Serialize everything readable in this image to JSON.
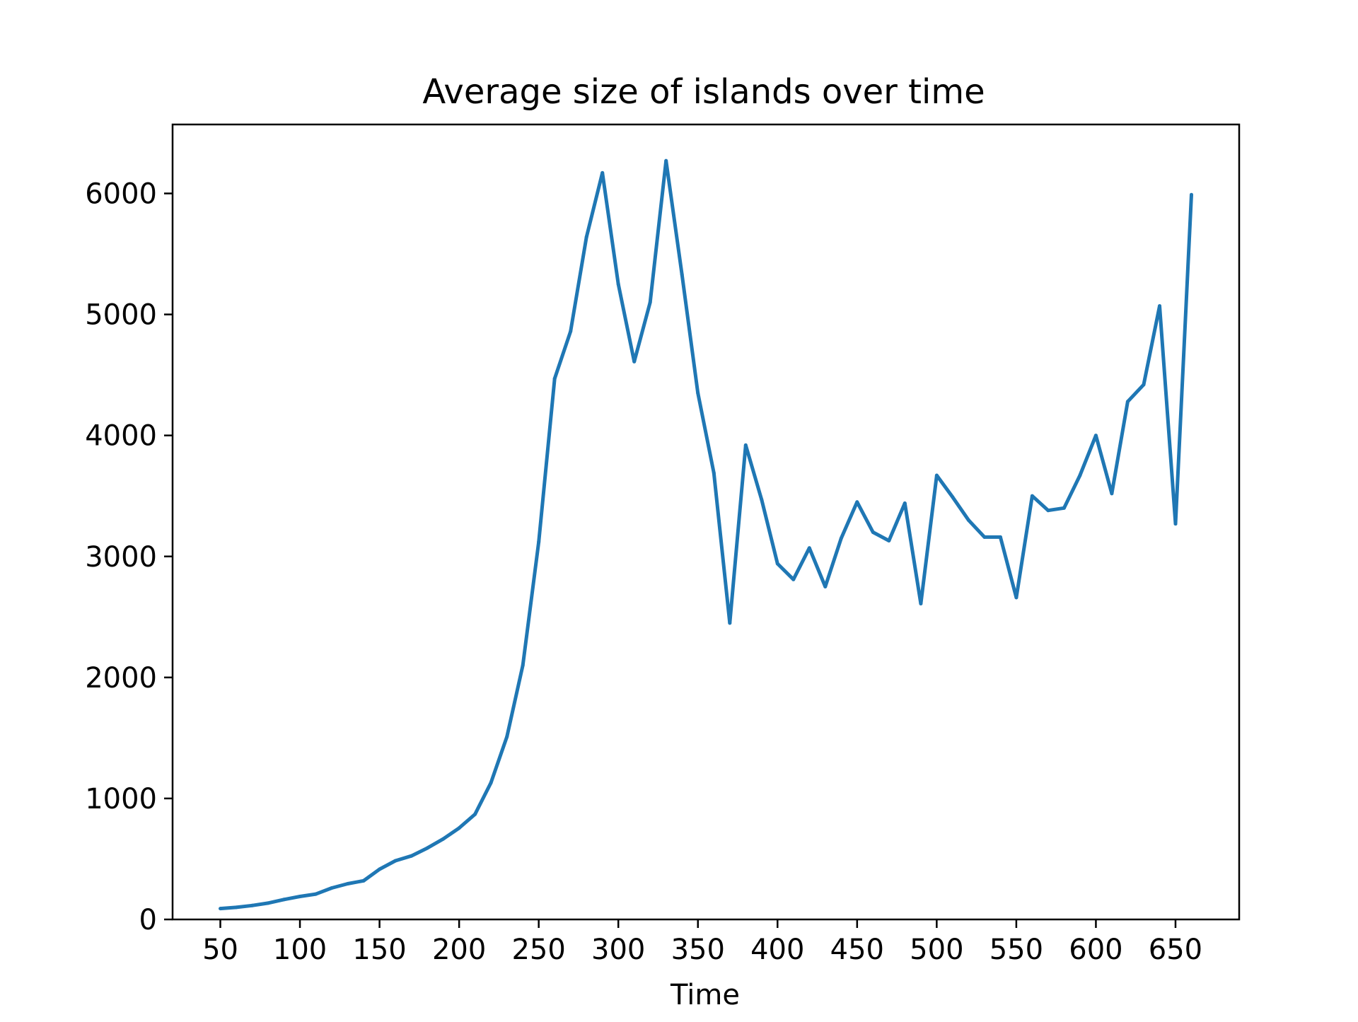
{
  "chart_data": {
    "type": "line",
    "title": "Average size of islands over time",
    "xlabel": "Time",
    "ylabel": "",
    "xlim": [
      20,
      690
    ],
    "ylim": [
      0,
      6570
    ],
    "xticks": [
      50,
      100,
      150,
      200,
      250,
      300,
      350,
      400,
      450,
      500,
      550,
      600,
      650
    ],
    "yticks": [
      0,
      1000,
      2000,
      3000,
      4000,
      5000,
      6000
    ],
    "grid": false,
    "legend": "none",
    "series": [
      {
        "color": "#1f77b4",
        "x": [
          50,
          60,
          70,
          80,
          90,
          100,
          110,
          120,
          130,
          140,
          150,
          160,
          170,
          180,
          190,
          200,
          210,
          220,
          230,
          240,
          250,
          260,
          270,
          280,
          290,
          300,
          310,
          320,
          330,
          340,
          350,
          360,
          370,
          380,
          390,
          400,
          410,
          420,
          430,
          440,
          450,
          460,
          470,
          480,
          490,
          500,
          510,
          520,
          530,
          540,
          550,
          560,
          570,
          580,
          590,
          600,
          610,
          620,
          630,
          640,
          650,
          660
        ],
        "y": [
          90,
          100,
          115,
          135,
          165,
          190,
          210,
          260,
          295,
          320,
          415,
          485,
          525,
          590,
          665,
          755,
          870,
          1130,
          1510,
          2100,
          3120,
          4470,
          4860,
          5640,
          6170,
          5250,
          4610,
          5100,
          6270,
          5330,
          4350,
          3690,
          2450,
          3920,
          3470,
          2940,
          2810,
          3070,
          2750,
          3150,
          3450,
          3200,
          3130,
          3440,
          2610,
          3670,
          3490,
          3300,
          3160,
          3160,
          2660,
          3500,
          3380,
          3400,
          3670,
          4000,
          3520,
          4280,
          4420,
          5070,
          3270,
          5990
        ]
      }
    ]
  }
}
